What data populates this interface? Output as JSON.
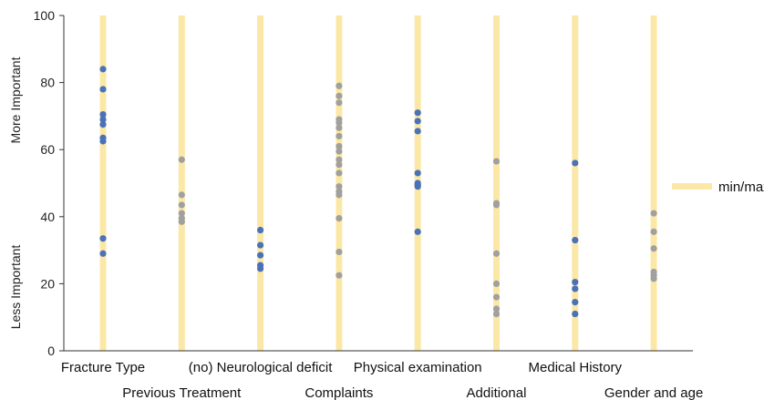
{
  "chart_data": {
    "type": "scatter",
    "ylim": [
      0,
      100
    ],
    "yticks": [
      0,
      20,
      40,
      60,
      80,
      100
    ],
    "ylabel_upper": "More Important",
    "ylabel_lower": "Less Important",
    "grid": false,
    "legend": {
      "label": "min/max",
      "placement": "right"
    },
    "colors": {
      "range_bar": "#fce8a6",
      "blue_point": "#4a72b8",
      "gray_point": "#a0a0a0",
      "axis": "#333333"
    },
    "categories": [
      {
        "label": "Fracture Type",
        "label_row": 1,
        "color": "blue",
        "values": [
          84,
          78,
          70.5,
          69,
          67.5,
          63.5,
          62.5,
          33.5,
          29
        ]
      },
      {
        "label": "Previous Treatment",
        "label_row": 2,
        "color": "gray",
        "values": [
          57,
          46.5,
          43.5,
          41,
          39.5,
          38.5
        ]
      },
      {
        "label": "(no) Neurological deficit",
        "label_row": 1,
        "color": "blue",
        "values": [
          36,
          31.5,
          28.5,
          25.5,
          24.5
        ]
      },
      {
        "label": "Complaints",
        "label_row": 2,
        "color": "gray",
        "values": [
          79,
          76,
          74,
          69,
          68,
          66.5,
          64,
          61,
          59.5,
          57,
          55.5,
          53,
          49,
          47.5,
          46.5,
          39.5,
          29.5,
          22.5
        ]
      },
      {
        "label": "Physical examination",
        "label_row": 1,
        "color": "blue",
        "values": [
          71,
          68.5,
          65.5,
          53,
          50,
          49.5,
          49,
          35.5
        ]
      },
      {
        "label": "Additional",
        "label_row": 2,
        "color": "gray",
        "values": [
          56.5,
          44,
          43.5,
          29,
          20,
          16,
          12.5,
          11
        ]
      },
      {
        "label": "Medical History",
        "label_row": 1,
        "color": "blue",
        "values": [
          56,
          33,
          20.5,
          18.5,
          14.5,
          11
        ]
      },
      {
        "label": "Gender and age",
        "label_row": 2,
        "color": "gray",
        "values": [
          41,
          35.5,
          30.5,
          23.5,
          22.5,
          21.5
        ]
      }
    ]
  }
}
